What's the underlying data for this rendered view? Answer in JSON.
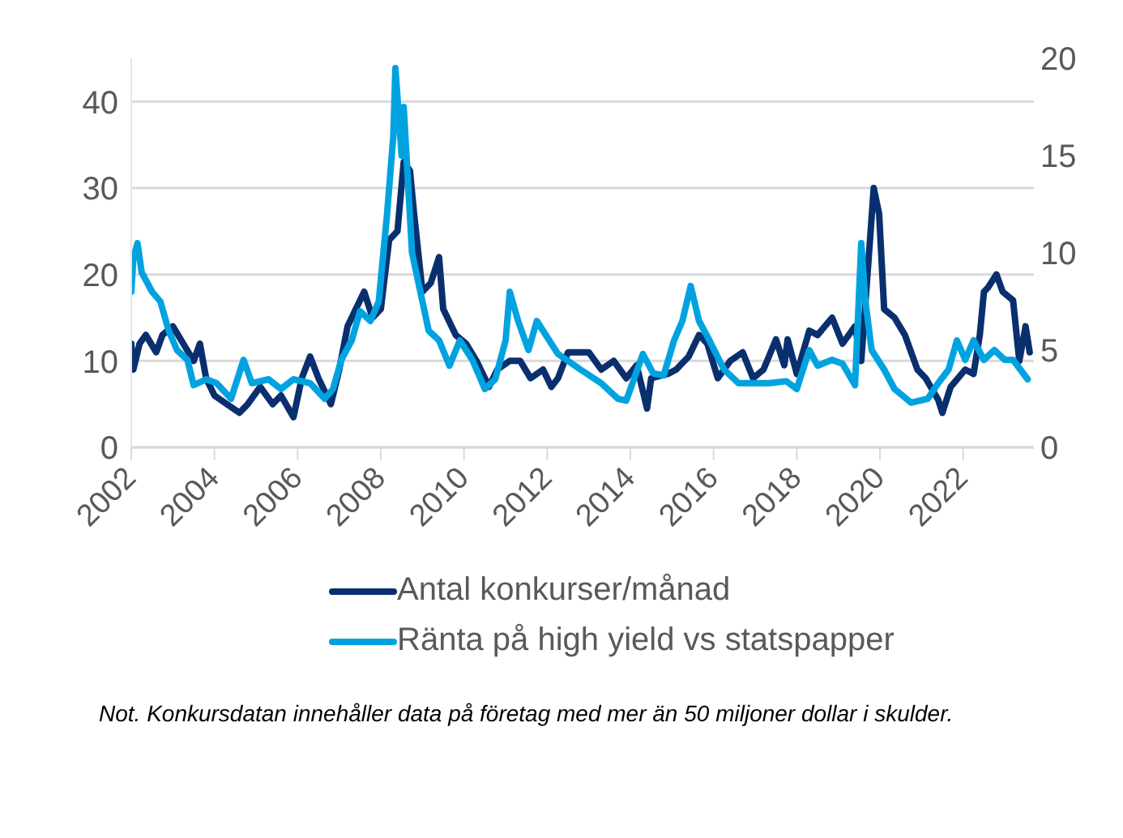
{
  "chart_data": {
    "type": "line",
    "xlim": [
      2002,
      2023.7
    ],
    "xticks": [
      2002,
      2004,
      2006,
      2008,
      2010,
      2012,
      2014,
      2016,
      2018,
      2020,
      2022
    ],
    "ylim": [
      0,
      45
    ],
    "yticks": [
      0,
      10,
      20,
      30,
      40
    ],
    "y2lim": [
      0,
      20
    ],
    "y2ticks": [
      0,
      5,
      10,
      15,
      20
    ],
    "grid": "y",
    "legend": "bottom",
    "marker": "none",
    "line_style": "solid",
    "annotations": [
      "Not. Konkursdatan innehåller data på företag med mer än 50 miljoner dollar i skulder."
    ],
    "series": [
      {
        "name": "Antal konkurser/månad",
        "color": "#0a2f6e",
        "x": [
          2002,
          2002.05,
          2002.2,
          2002.35,
          2002.6,
          2002.75,
          2003,
          2003.25,
          2003.5,
          2003.65,
          2003.8,
          2004,
          2004.3,
          2004.6,
          2004.8,
          2005.1,
          2005.4,
          2005.6,
          2005.9,
          2006.1,
          2006.3,
          2006.5,
          2006.8,
          2007,
          2007.2,
          2007.4,
          2007.6,
          2007.8,
          2008,
          2008.2,
          2008.4,
          2008.55,
          2008.7,
          2008.8,
          2009,
          2009.2,
          2009.4,
          2009.5,
          2009.8,
          2010.05,
          2010.3,
          2010.6,
          2010.8,
          2011.1,
          2011.35,
          2011.6,
          2011.9,
          2012.1,
          2012.26,
          2012.5,
          2013,
          2013.3,
          2013.6,
          2013.9,
          2014.15,
          2014.4,
          2014.5,
          2014.9,
          2015.1,
          2015.4,
          2015.65,
          2015.85,
          2016.1,
          2016.4,
          2016.7,
          2016.95,
          2017.2,
          2017.5,
          2017.7,
          2017.78,
          2018,
          2018.3,
          2018.5,
          2018.85,
          2019.1,
          2019.4,
          2019.55,
          2019.7,
          2019.85,
          2019.98,
          2020.1,
          2020.35,
          2020.6,
          2020.9,
          2021.1,
          2021.4,
          2021.5,
          2021.7,
          2022.05,
          2022.25,
          2022.4,
          2022.5,
          2022.6,
          2022.8,
          2022.95,
          2023.2,
          2023.35,
          2023.5,
          2023.6
        ],
        "values": [
          12,
          9,
          12,
          13,
          11,
          13,
          14,
          12,
          10,
          12,
          8,
          6,
          5,
          4,
          5,
          7,
          5,
          6,
          3.5,
          8,
          10.5,
          8,
          5,
          9,
          14,
          16,
          18,
          15,
          16,
          24,
          25,
          33,
          32,
          27,
          18,
          19,
          22,
          16,
          13,
          12,
          10,
          7,
          9,
          10,
          10,
          8,
          9,
          7,
          8,
          11,
          11,
          9,
          10,
          8,
          9.5,
          4.5,
          8,
          8.5,
          9,
          10.5,
          13,
          12,
          8,
          10,
          11,
          8,
          9,
          12.5,
          9.5,
          12.5,
          8.5,
          13.5,
          13,
          15,
          12,
          14,
          10,
          20,
          30,
          27,
          16,
          15,
          13,
          9,
          8,
          5.5,
          4,
          7,
          9,
          8.5,
          13,
          18,
          18.5,
          20,
          18,
          17,
          10,
          14,
          11
        ]
      },
      {
        "name": "Ränta på high yield vs statspapper",
        "color": "#00a3e0",
        "axis": "y2",
        "x": [
          2002,
          2002.05,
          2002.15,
          2002.25,
          2002.5,
          2002.7,
          2002.9,
          2003.1,
          2003.35,
          2003.5,
          2003.8,
          2004.05,
          2004.4,
          2004.7,
          2004.9,
          2005.3,
          2005.6,
          2005.9,
          2006.3,
          2006.65,
          2006.85,
          2007.05,
          2007.3,
          2007.5,
          2007.75,
          2007.95,
          2008.15,
          2008.3,
          2008.35,
          2008.5,
          2008.55,
          2008.75,
          2008.95,
          2009.15,
          2009.4,
          2009.65,
          2009.9,
          2010.2,
          2010.5,
          2010.75,
          2011,
          2011.1,
          2011.3,
          2011.55,
          2011.75,
          2012.26,
          2012.8,
          2013.3,
          2013.7,
          2013.9,
          2014.3,
          2014.55,
          2014.8,
          2015.05,
          2015.25,
          2015.45,
          2015.65,
          2015.9,
          2016.25,
          2016.6,
          2016.95,
          2017.35,
          2017.75,
          2018,
          2018.3,
          2018.5,
          2018.85,
          2019.1,
          2019.4,
          2019.55,
          2019.65,
          2019.8,
          2020.1,
          2020.35,
          2020.75,
          2021.15,
          2021.4,
          2021.65,
          2021.85,
          2022.05,
          2022.25,
          2022.5,
          2022.75,
          2023,
          2023.2,
          2023.55
        ],
        "values": [
          8,
          9.7,
          10.5,
          9,
          8,
          7.5,
          6,
          5,
          4.5,
          3.2,
          3.5,
          3.3,
          2.5,
          4.5,
          3.3,
          3.5,
          3,
          3.5,
          3.3,
          2.5,
          3,
          4.5,
          5.5,
          7,
          6.5,
          7.5,
          12,
          16,
          19.5,
          15,
          17.5,
          10,
          8,
          6,
          5.5,
          4.2,
          5.5,
          4.5,
          3,
          3.5,
          5.5,
          8,
          6.5,
          5,
          6.5,
          4.8,
          4,
          3.3,
          2.5,
          2.4,
          4.8,
          3.8,
          3.7,
          5.5,
          6.5,
          8.3,
          6.5,
          5.5,
          4,
          3.3,
          3.3,
          3.3,
          3.4,
          3,
          5,
          4.2,
          4.5,
          4.3,
          3.2,
          10.5,
          7.5,
          5,
          4,
          3,
          2.3,
          2.5,
          3.3,
          4,
          5.5,
          4.5,
          5.5,
          4.5,
          5,
          4.5,
          4.5,
          3.5
        ]
      }
    ]
  }
}
